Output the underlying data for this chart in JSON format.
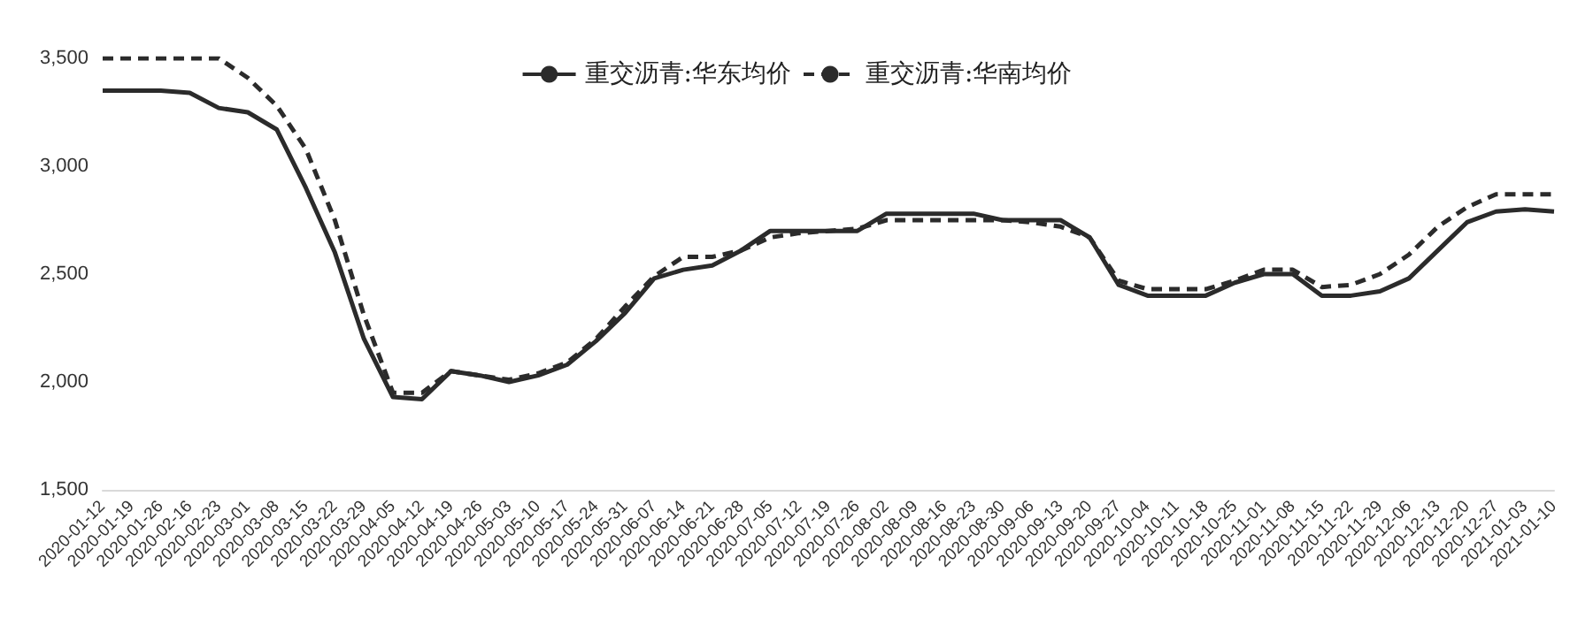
{
  "chart_data": {
    "type": "line",
    "legend": "top",
    "grid": false,
    "marker": "none",
    "categories": [
      "2020-01-12",
      "2020-01-19",
      "2020-01-26",
      "2020-02-16",
      "2020-02-23",
      "2020-03-01",
      "2020-03-08",
      "2020-03-15",
      "2020-03-22",
      "2020-03-29",
      "2020-04-05",
      "2020-04-12",
      "2020-04-19",
      "2020-04-26",
      "2020-05-03",
      "2020-05-10",
      "2020-05-17",
      "2020-05-24",
      "2020-05-31",
      "2020-06-07",
      "2020-06-14",
      "2020-06-21",
      "2020-06-28",
      "2020-07-05",
      "2020-07-12",
      "2020-07-19",
      "2020-07-26",
      "2020-08-02",
      "2020-08-09",
      "2020-08-16",
      "2020-08-23",
      "2020-08-30",
      "2020-09-06",
      "2020-09-13",
      "2020-09-20",
      "2020-09-27",
      "2020-10-04",
      "2020-10-11",
      "2020-10-18",
      "2020-10-25",
      "2020-11-01",
      "2020-11-08",
      "2020-11-15",
      "2020-11-22",
      "2020-11-29",
      "2020-12-06",
      "2020-12-13",
      "2020-12-20",
      "2020-12-27",
      "2021-01-03",
      "2021-01-10"
    ],
    "ylim": [
      1500,
      3500
    ],
    "yticks": [
      {
        "value": 1500,
        "label": "1,500"
      },
      {
        "value": 2000,
        "label": "2,000"
      },
      {
        "value": 2500,
        "label": "2,500"
      },
      {
        "value": 3000,
        "label": "3,000"
      },
      {
        "value": 3500,
        "label": "3,500"
      }
    ],
    "series": [
      {
        "name": "重交沥青:华东均价",
        "color": "#2b2b2b",
        "line_style": "solid",
        "values": [
          3350,
          3350,
          3350,
          3340,
          3270,
          3250,
          3170,
          2900,
          2600,
          2200,
          1930,
          1920,
          2050,
          2030,
          2000,
          2030,
          2080,
          2190,
          2320,
          2480,
          2520,
          2540,
          2610,
          2700,
          2700,
          2700,
          2700,
          2780,
          2780,
          2780,
          2780,
          2750,
          2750,
          2750,
          2670,
          2450,
          2400,
          2400,
          2400,
          2460,
          2500,
          2500,
          2400,
          2400,
          2420,
          2480,
          2610,
          2740,
          2790,
          2800,
          2790
        ]
      },
      {
        "name": "重交沥青:华南均价",
        "color": "#2b2b2b",
        "line_style": "dashed",
        "values": [
          3500,
          3500,
          3500,
          3500,
          3500,
          3410,
          3280,
          3080,
          2750,
          2310,
          1950,
          1950,
          2050,
          2030,
          2010,
          2040,
          2090,
          2200,
          2350,
          2490,
          2580,
          2580,
          2610,
          2670,
          2690,
          2700,
          2710,
          2750,
          2750,
          2750,
          2750,
          2750,
          2740,
          2720,
          2670,
          2470,
          2430,
          2430,
          2430,
          2470,
          2520,
          2520,
          2440,
          2450,
          2500,
          2590,
          2720,
          2810,
          2870,
          2870,
          2870
        ]
      }
    ]
  }
}
